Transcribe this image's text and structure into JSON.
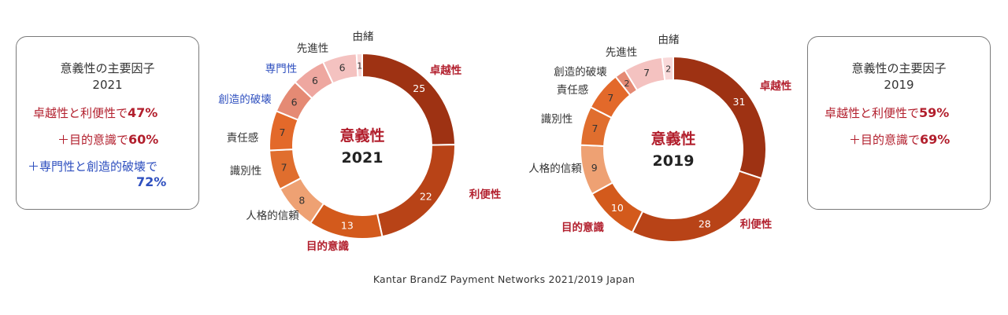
{
  "source_note": "Kantar BrandZ Payment Networks 2021/2019 Japan",
  "box_2021": {
    "title1": "意義性の主要因子",
    "title2": "2021",
    "line1_text": "卓越性と利便性で",
    "line1_value": "47%",
    "line2_text": "＋目的意識で",
    "line2_value": "60%",
    "line3_text": "＋専門性と創造的破壊で",
    "line3_value": "72%"
  },
  "box_2019": {
    "title1": "意義性の主要因子",
    "title2": "2019",
    "line1_text": "卓越性と利便性で",
    "line1_value": "59%",
    "line2_text": "＋目的意識で",
    "line2_value": "69%"
  },
  "colors": {
    "label_red": "#b21f2d",
    "label_blue": "#2e4fbf",
    "label_dark": "#333333"
  },
  "chart_data": [
    {
      "type": "pie",
      "donut": true,
      "center_title": "意義性",
      "center_year": "2021",
      "slices": [
        {
          "label": "卓越性",
          "value": 25,
          "color": "#9e3213",
          "label_color": "#b21f2d",
          "label_bold": true
        },
        {
          "label": "利便性",
          "value": 22,
          "color": "#b84317",
          "label_color": "#b21f2d",
          "label_bold": true
        },
        {
          "label": "目的意識",
          "value": 13,
          "color": "#d35a1c",
          "label_color": "#b21f2d",
          "label_bold": true
        },
        {
          "label": "人格的信頼",
          "value": 8,
          "color": "#eea173",
          "label_color": "#333333",
          "label_bold": false
        },
        {
          "label": "識別性",
          "value": 7,
          "color": "#e06e2e",
          "label_color": "#333333",
          "label_bold": false
        },
        {
          "label": "責任感",
          "value": 7,
          "color": "#e3692a",
          "label_color": "#333333",
          "label_bold": false
        },
        {
          "label": "創造的破壊",
          "value": 6,
          "color": "#e58a74",
          "label_color": "#2e4fbf",
          "label_bold": false
        },
        {
          "label": "専門性",
          "value": 6,
          "color": "#eea7a0",
          "label_color": "#2e4fbf",
          "label_bold": false
        },
        {
          "label": "先進性",
          "value": 6,
          "color": "#f4c2c0",
          "label_color": "#333333",
          "label_bold": false
        },
        {
          "label": "由緒",
          "value": 1,
          "color": "#f9d9d9",
          "label_color": "#333333",
          "label_bold": false
        }
      ]
    },
    {
      "type": "pie",
      "donut": true,
      "center_title": "意義性",
      "center_year": "2019",
      "slices": [
        {
          "label": "卓越性",
          "value": 31,
          "color": "#9e3213",
          "label_color": "#b21f2d",
          "label_bold": true
        },
        {
          "label": "利便性",
          "value": 28,
          "color": "#b84317",
          "label_color": "#b21f2d",
          "label_bold": true
        },
        {
          "label": "目的意識",
          "value": 10,
          "color": "#d35a1c",
          "label_color": "#b21f2d",
          "label_bold": true
        },
        {
          "label": "人格的信頼",
          "value": 9,
          "color": "#eea173",
          "label_color": "#333333",
          "label_bold": false
        },
        {
          "label": "識別性",
          "value": 7,
          "color": "#e06e2e",
          "label_color": "#333333",
          "label_bold": false
        },
        {
          "label": "責任感",
          "value": 7,
          "color": "#e3692a",
          "label_color": "#333333",
          "label_bold": false
        },
        {
          "label": "創造的破壊",
          "value": 2,
          "color": "#e58a74",
          "label_color": "#333333",
          "label_bold": false
        },
        {
          "label": "先進性",
          "value": 7,
          "color": "#f4c2c0",
          "label_color": "#333333",
          "label_bold": false
        },
        {
          "label": "由緒",
          "value": 2,
          "color": "#f9d9d9",
          "label_color": "#333333",
          "label_bold": false
        }
      ]
    }
  ]
}
